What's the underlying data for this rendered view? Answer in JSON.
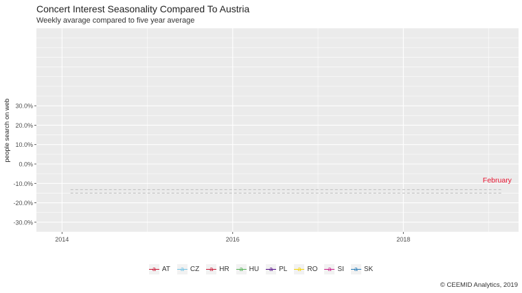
{
  "title": "Concert Interest Seasonality Compared To Austria",
  "subtitle": "Weekly avarage compared to five year average",
  "caption": "© CEEMID Analytics, 2019",
  "chart_data": {
    "type": "line",
    "ylabel": "people search on web",
    "xlabel": "",
    "x_ticks": [
      "2014",
      "2016",
      "2018"
    ],
    "y_ticks": [
      "-30.0%",
      "-20.0%",
      "-10.0%",
      "0.0%",
      "10.0%",
      "20.0%",
      "30.0%"
    ],
    "xlim": [
      2013.7,
      2019.35
    ],
    "ylim": [
      -35,
      70
    ],
    "grid": true,
    "series": [
      {
        "name": "",
        "x": [
          2014.1,
          2019.15
        ],
        "values": [
          -13.2,
          -13.2
        ],
        "color": "#bdbdbd",
        "dashed": true
      },
      {
        "name": "",
        "x": [
          2014.1,
          2019.15
        ],
        "values": [
          -15.0,
          -15.0
        ],
        "color": "#bdbdbd",
        "dashed": true
      }
    ],
    "annotations": [
      {
        "text": "February",
        "x": 2019.1,
        "y": -9.5,
        "color": "#e8132f"
      }
    ],
    "legend": {
      "position": "bottom",
      "entries": [
        {
          "name": "AT",
          "color": "#c8102e"
        },
        {
          "name": "CZ",
          "color": "#6ec1e4"
        },
        {
          "name": "HR",
          "color": "#c8102e"
        },
        {
          "name": "HU",
          "color": "#4caf50"
        },
        {
          "name": "PL",
          "color": "#4b0082"
        },
        {
          "name": "RO",
          "color": "#f5d300"
        },
        {
          "name": "SI",
          "color": "#c71585"
        },
        {
          "name": "SK",
          "color": "#1f77b4"
        }
      ]
    }
  }
}
